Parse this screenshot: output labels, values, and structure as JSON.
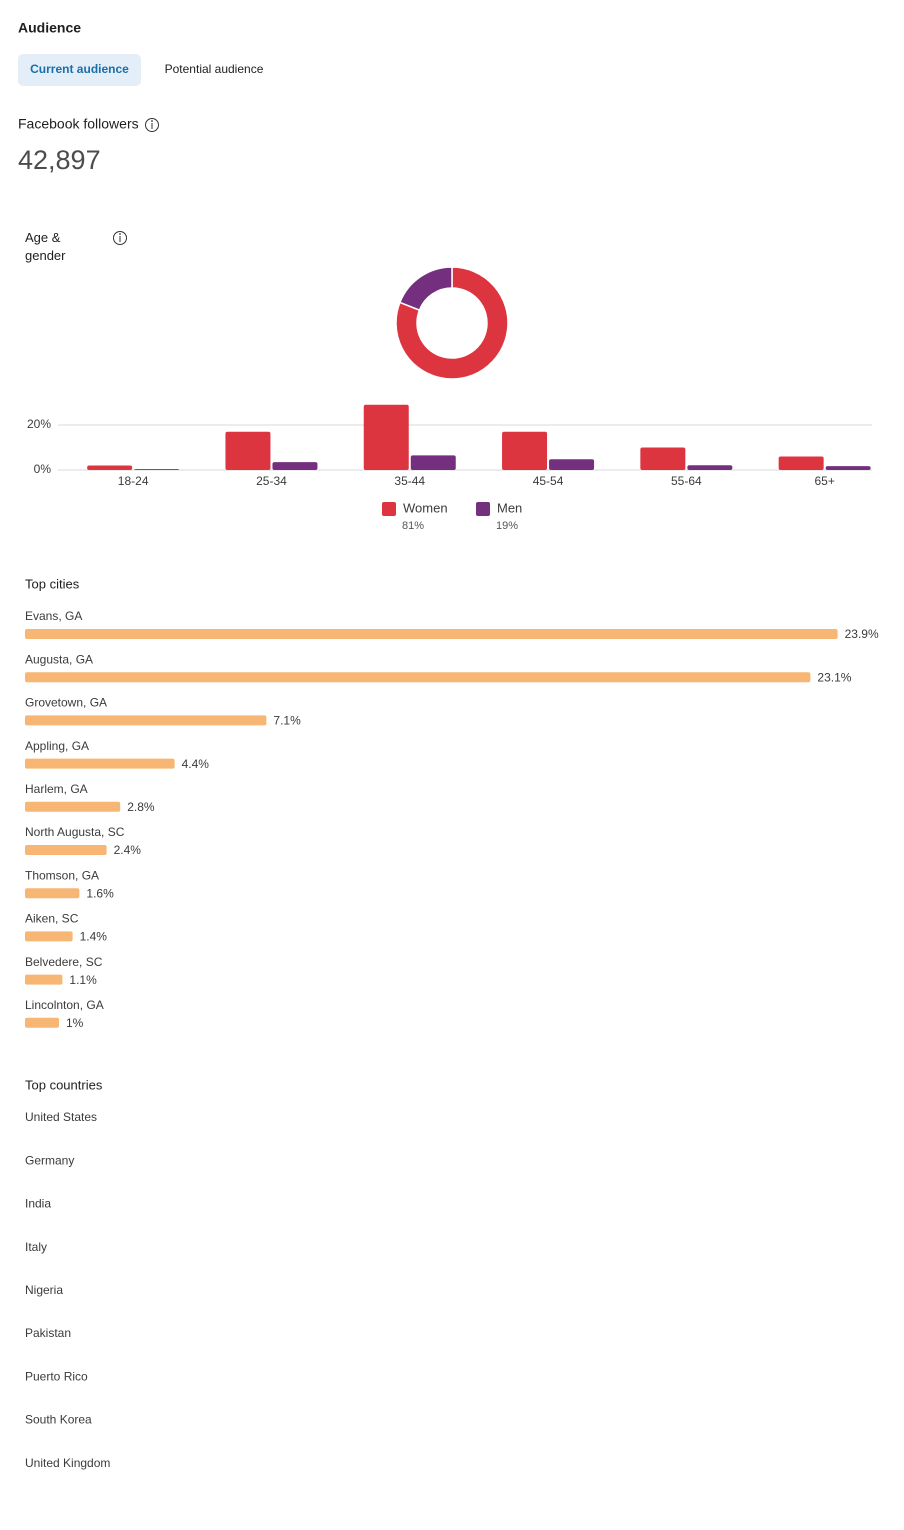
{
  "header": {
    "title": "Audience"
  },
  "tabs": [
    "Current audience",
    "Potential audience"
  ],
  "followers": {
    "label": "Facebook followers",
    "value": "42,897"
  },
  "chart_data": [
    {
      "type": "donut",
      "title": "Age & gender",
      "categories": [
        "Women",
        "Men"
      ],
      "values": [
        81,
        19
      ],
      "value_labels": [
        "81%",
        "19%"
      ],
      "colors": [
        "#dc3540",
        "#74307e"
      ]
    },
    {
      "type": "bar",
      "categories": [
        "18-24",
        "25-34",
        "35-44",
        "45-54",
        "55-64",
        "65+"
      ],
      "series": [
        {
          "name": "Women",
          "color": "#dc3540",
          "values": [
            2,
            17,
            29,
            17,
            10,
            6
          ]
        },
        {
          "name": "Men",
          "color": "#74307e",
          "values": [
            0.4,
            3.5,
            6.5,
            4.8,
            2.1,
            1.7
          ]
        }
      ],
      "ylim": [
        0,
        30
      ],
      "yticks": [
        {
          "value": 0,
          "label": "0%"
        },
        {
          "value": 20,
          "label": "20%"
        }
      ],
      "grid": true
    },
    {
      "type": "hbar",
      "title": "Top cities",
      "categories": [
        "Evans, GA",
        "Augusta, GA",
        "Grovetown, GA",
        "Appling, GA",
        "Harlem, GA",
        "North Augusta, SC",
        "Thomson, GA",
        "Aiken, SC",
        "Belvedere, SC",
        "Lincolnton, GA"
      ],
      "values": [
        23.9,
        23.1,
        7.1,
        4.4,
        2.8,
        2.4,
        1.6,
        1.4,
        1.1,
        1
      ],
      "value_labels": [
        "23.9%",
        "23.1%",
        "7.1%",
        "4.4%",
        "2.8%",
        "2.4%",
        "1.6%",
        "1.4%",
        "1.1%",
        "1%"
      ],
      "color": "#f7b673",
      "xlim": [
        0,
        24
      ]
    }
  ],
  "countries": {
    "title": "Top countries",
    "items": [
      "United States",
      "Germany",
      "India",
      "Italy",
      "Nigeria",
      "Pakistan",
      "Puerto Rico",
      "South Korea",
      "United Kingdom"
    ]
  }
}
